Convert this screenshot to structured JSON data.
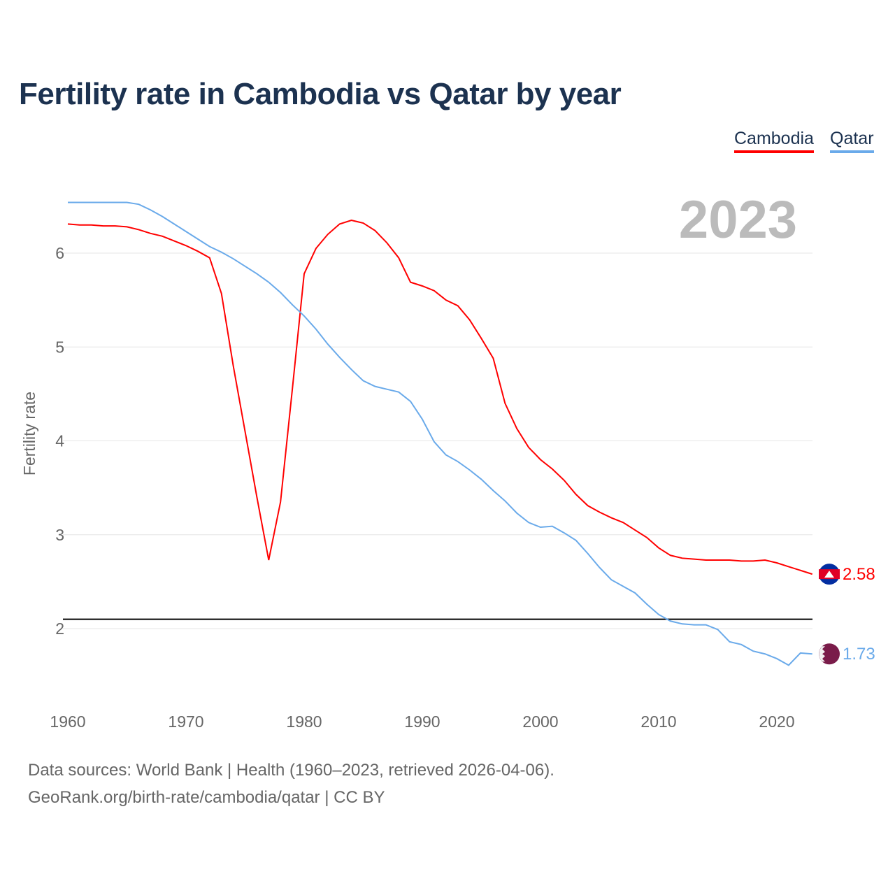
{
  "title": "Fertility rate in Cambodia vs Qatar by year",
  "legend": {
    "cambodia": "Cambodia",
    "qatar": "Qatar"
  },
  "year_label": "2023",
  "source_line1": "Data sources: World Bank | Health (1960–2023, retrieved 2026-04-06).",
  "source_line2": "GeoRank.org/birth-rate/cambodia/qatar | CC BY",
  "chart_data": {
    "type": "line",
    "title": "Fertility rate in Cambodia vs Qatar by year",
    "xlabel": "",
    "ylabel": "Fertility rate",
    "xlim": [
      1960,
      2023
    ],
    "ylim": [
      1.4,
      6.7
    ],
    "xticks": [
      "1960",
      "1970",
      "1980",
      "1990",
      "2000",
      "2010",
      "2020"
    ],
    "yticks": [
      "2",
      "3",
      "4",
      "5",
      "6"
    ],
    "reference_line": 2.1,
    "legend_position": "top-right",
    "x_start": 1960,
    "series": [
      {
        "name": "Cambodia",
        "color": "#ff0000",
        "end_label": "2.58",
        "values": [
          6.31,
          6.3,
          6.3,
          6.29,
          6.29,
          6.28,
          6.25,
          6.21,
          6.18,
          6.13,
          6.08,
          6.02,
          5.95,
          5.57,
          4.8,
          4.1,
          3.4,
          2.73,
          3.35,
          4.55,
          5.78,
          6.05,
          6.2,
          6.31,
          6.35,
          6.32,
          6.24,
          6.11,
          5.95,
          5.69,
          5.65,
          5.6,
          5.5,
          5.44,
          5.29,
          5.09,
          4.88,
          4.4,
          4.13,
          3.93,
          3.8,
          3.7,
          3.58,
          3.43,
          3.31,
          3.24,
          3.18,
          3.13,
          3.05,
          2.97,
          2.86,
          2.78,
          2.75,
          2.74,
          2.73,
          2.73,
          2.73,
          2.72,
          2.72,
          2.73,
          2.7,
          2.66,
          2.62,
          2.58
        ]
      },
      {
        "name": "Qatar",
        "color": "#6aaaea",
        "end_label": "1.73",
        "values": [
          6.54,
          6.54,
          6.54,
          6.54,
          6.54,
          6.54,
          6.52,
          6.46,
          6.39,
          6.31,
          6.23,
          6.15,
          6.07,
          6.01,
          5.94,
          5.86,
          5.78,
          5.69,
          5.58,
          5.45,
          5.33,
          5.19,
          5.03,
          4.89,
          4.76,
          4.64,
          4.58,
          4.55,
          4.52,
          4.42,
          4.23,
          3.99,
          3.85,
          3.78,
          3.69,
          3.59,
          3.47,
          3.36,
          3.23,
          3.13,
          3.08,
          3.09,
          3.02,
          2.94,
          2.8,
          2.65,
          2.52,
          2.45,
          2.38,
          2.26,
          2.15,
          2.08,
          2.05,
          2.04,
          2.04,
          1.99,
          1.86,
          1.83,
          1.76,
          1.73,
          1.68,
          1.61,
          1.74,
          1.73
        ]
      }
    ]
  }
}
